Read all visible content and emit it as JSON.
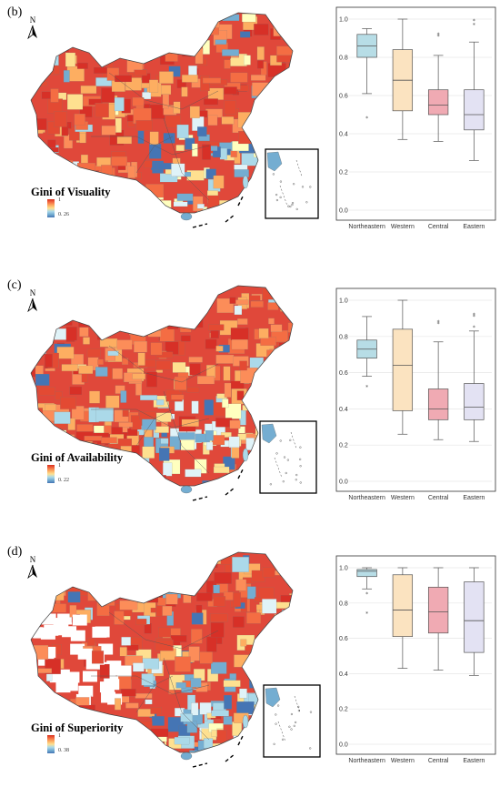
{
  "panels": [
    {
      "label": "(b)",
      "map_title": "Gini of Visuality",
      "legend_max": "1",
      "legend_min": "0. 26",
      "north": "N",
      "chart_data": {
        "type": "box",
        "categories": [
          "Northeastern",
          "Western",
          "Central",
          "Eastern"
        ],
        "colors": [
          "#b7dde6",
          "#fbe3c0",
          "#f0aab3",
          "#e3e2f3"
        ],
        "ylim": [
          0,
          1.0
        ],
        "yticks": [
          "0.0",
          "0.2",
          "0.4",
          "0.6",
          "0.8",
          "1.0"
        ],
        "grid": true,
        "boxes": [
          {
            "whisker_low": 0.61,
            "q1": 0.8,
            "median": 0.86,
            "q3": 0.92,
            "whisker_high": 0.95,
            "outliers": [
              0.48
            ]
          },
          {
            "whisker_low": 0.37,
            "q1": 0.52,
            "median": 0.68,
            "q3": 0.84,
            "whisker_high": 1.0,
            "outliers": []
          },
          {
            "whisker_low": 0.36,
            "q1": 0.5,
            "median": 0.55,
            "q3": 0.63,
            "whisker_high": 0.81,
            "outliers": [
              0.91,
              0.92
            ]
          },
          {
            "whisker_low": 0.26,
            "q1": 0.42,
            "median": 0.5,
            "q3": 0.63,
            "whisker_high": 0.88,
            "outliers": [
              0.97,
              0.99
            ]
          }
        ]
      }
    },
    {
      "label": "(c)",
      "map_title": "Gini of Availability",
      "legend_max": "1",
      "legend_min": "0. 22",
      "north": "N",
      "chart_data": {
        "type": "box",
        "categories": [
          "Northeastern",
          "Western",
          "Central",
          "Eastern"
        ],
        "colors": [
          "#b7dde6",
          "#fbe3c0",
          "#f0aab3",
          "#e3e2f3"
        ],
        "ylim": [
          0,
          1.0
        ],
        "yticks": [
          "0.0",
          "0.2",
          "0.4",
          "0.6",
          "0.8",
          "1.0"
        ],
        "grid": true,
        "boxes": [
          {
            "whisker_low": 0.58,
            "q1": 0.68,
            "median": 0.73,
            "q3": 0.78,
            "whisker_high": 0.91,
            "outliers": [
              0.52
            ]
          },
          {
            "whisker_low": 0.26,
            "q1": 0.39,
            "median": 0.64,
            "q3": 0.84,
            "whisker_high": 1.0,
            "outliers": []
          },
          {
            "whisker_low": 0.23,
            "q1": 0.34,
            "median": 0.4,
            "q3": 0.51,
            "whisker_high": 0.77,
            "outliers": [
              0.87,
              0.88
            ]
          },
          {
            "whisker_low": 0.22,
            "q1": 0.34,
            "median": 0.41,
            "q3": 0.54,
            "whisker_high": 0.83,
            "outliers": [
              0.85,
              0.91,
              0.92
            ]
          }
        ]
      }
    },
    {
      "label": "(d)",
      "map_title": "Gini of Superiority",
      "legend_max": "1",
      "legend_min": "0. 38",
      "north": "N",
      "chart_data": {
        "type": "box",
        "categories": [
          "Northeastern",
          "Western",
          "Central",
          "Eastern"
        ],
        "colors": [
          "#b7dde6",
          "#fbe3c0",
          "#f0aab3",
          "#e3e2f3"
        ],
        "ylim": [
          0,
          1.0
        ],
        "yticks": [
          "0.0",
          "0.2",
          "0.4",
          "0.6",
          "0.8",
          "1.0"
        ],
        "grid": true,
        "boxes": [
          {
            "whisker_low": 0.88,
            "q1": 0.95,
            "median": 0.98,
            "q3": 0.99,
            "whisker_high": 1.0,
            "outliers": [
              0.74,
              0.85
            ]
          },
          {
            "whisker_low": 0.43,
            "q1": 0.61,
            "median": 0.76,
            "q3": 0.96,
            "whisker_high": 1.0,
            "outliers": []
          },
          {
            "whisker_low": 0.42,
            "q1": 0.63,
            "median": 0.75,
            "q3": 0.89,
            "whisker_high": 1.0,
            "outliers": []
          },
          {
            "whisker_low": 0.39,
            "q1": 0.52,
            "median": 0.7,
            "q3": 0.92,
            "whisker_high": 1.0,
            "outliers": []
          }
        ]
      }
    }
  ]
}
